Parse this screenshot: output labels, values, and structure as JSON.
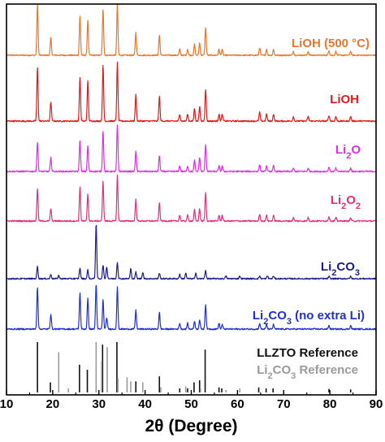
{
  "chart_data": {
    "type": "line",
    "title": "",
    "xlabel": "2θ (Degree)",
    "ylabel": "",
    "xlim": [
      10,
      90
    ],
    "xticks": [
      "10",
      "20",
      "30",
      "40",
      "50",
      "60",
      "70",
      "80",
      "90"
    ],
    "grid": false,
    "series": [
      {
        "name": "LiOH (500 °C)",
        "color": "#E8762B",
        "peaks": [
          [
            16.7,
            1.0
          ],
          [
            19.6,
            0.35
          ],
          [
            25.9,
            0.78
          ],
          [
            27.6,
            0.7
          ],
          [
            30.9,
            0.92
          ],
          [
            34.0,
            1.0
          ],
          [
            38.0,
            0.45
          ],
          [
            43.1,
            0.4
          ],
          [
            47.5,
            0.12
          ],
          [
            49.2,
            0.12
          ],
          [
            50.7,
            0.22
          ],
          [
            51.8,
            0.25
          ],
          [
            53.1,
            0.55
          ],
          [
            56.0,
            0.12
          ],
          [
            56.7,
            0.12
          ],
          [
            64.8,
            0.15
          ],
          [
            66.3,
            0.12
          ],
          [
            67.8,
            0.12
          ],
          [
            72.1,
            0.08
          ],
          [
            75.3,
            0.08
          ],
          [
            79.8,
            0.1
          ],
          [
            81.3,
            0.08
          ],
          [
            84.5,
            0.08
          ]
        ]
      },
      {
        "name": "LiOH",
        "color": "#E01B1B",
        "peaks": [
          [
            16.7,
            0.92
          ],
          [
            19.6,
            0.33
          ],
          [
            25.9,
            0.75
          ],
          [
            27.6,
            0.68
          ],
          [
            30.9,
            0.95
          ],
          [
            34.0,
            1.0
          ],
          [
            38.0,
            0.45
          ],
          [
            43.1,
            0.42
          ],
          [
            47.5,
            0.12
          ],
          [
            49.2,
            0.12
          ],
          [
            50.7,
            0.22
          ],
          [
            51.8,
            0.25
          ],
          [
            53.1,
            0.55
          ],
          [
            56.0,
            0.12
          ],
          [
            56.7,
            0.12
          ],
          [
            64.8,
            0.15
          ],
          [
            66.3,
            0.12
          ],
          [
            67.8,
            0.12
          ],
          [
            72.1,
            0.08
          ],
          [
            75.3,
            0.08
          ],
          [
            79.8,
            0.1
          ],
          [
            81.3,
            0.08
          ],
          [
            84.5,
            0.08
          ]
        ]
      },
      {
        "name": "Li2O",
        "name_base": "Li",
        "name_sub": "2",
        "name_rest": "O",
        "color": "#E22BE6",
        "peaks": [
          [
            16.7,
            0.52
          ],
          [
            19.6,
            0.24
          ],
          [
            25.9,
            0.55
          ],
          [
            27.6,
            0.45
          ],
          [
            30.9,
            0.72
          ],
          [
            34.0,
            0.82
          ],
          [
            38.0,
            0.36
          ],
          [
            43.1,
            0.28
          ],
          [
            47.5,
            0.1
          ],
          [
            49.2,
            0.1
          ],
          [
            50.7,
            0.2
          ],
          [
            51.8,
            0.25
          ],
          [
            53.1,
            0.48
          ],
          [
            56.0,
            0.1
          ],
          [
            56.7,
            0.1
          ],
          [
            64.8,
            0.12
          ],
          [
            66.3,
            0.1
          ],
          [
            67.8,
            0.1
          ],
          [
            72.1,
            0.06
          ],
          [
            75.3,
            0.06
          ],
          [
            79.8,
            0.08
          ],
          [
            81.3,
            0.06
          ],
          [
            84.5,
            0.06
          ]
        ]
      },
      {
        "name": "Li2O2",
        "name_base": "Li",
        "name_sub": "2",
        "name_rest": "O",
        "name_sub2": "2",
        "color": "#E0307A",
        "peaks": [
          [
            16.7,
            0.58
          ],
          [
            19.6,
            0.22
          ],
          [
            25.9,
            0.6
          ],
          [
            27.6,
            0.48
          ],
          [
            30.9,
            0.7
          ],
          [
            34.0,
            0.8
          ],
          [
            38.0,
            0.38
          ],
          [
            43.1,
            0.32
          ],
          [
            47.5,
            0.1
          ],
          [
            49.2,
            0.1
          ],
          [
            50.7,
            0.2
          ],
          [
            51.8,
            0.22
          ],
          [
            53.1,
            0.5
          ],
          [
            56.0,
            0.1
          ],
          [
            56.7,
            0.1
          ],
          [
            64.8,
            0.12
          ],
          [
            66.3,
            0.1
          ],
          [
            67.8,
            0.1
          ],
          [
            72.1,
            0.06
          ],
          [
            75.3,
            0.06
          ],
          [
            79.8,
            0.08
          ],
          [
            81.3,
            0.06
          ],
          [
            84.5,
            0.06
          ]
        ]
      },
      {
        "name": "Li2CO3",
        "name_base": "Li",
        "name_sub": "2",
        "name_rest": "CO",
        "name_sub2": "3",
        "color": "#1C1C8C",
        "peaks": [
          [
            16.7,
            0.22
          ],
          [
            19.6,
            0.08
          ],
          [
            21.3,
            0.06
          ],
          [
            25.9,
            0.2
          ],
          [
            27.6,
            0.16
          ],
          [
            29.4,
            1.0
          ],
          [
            30.9,
            0.25
          ],
          [
            31.7,
            0.22
          ],
          [
            34.0,
            0.3
          ],
          [
            36.9,
            0.18
          ],
          [
            38.0,
            0.12
          ],
          [
            39.5,
            0.12
          ],
          [
            43.1,
            0.1
          ],
          [
            47.5,
            0.08
          ],
          [
            48.8,
            0.1
          ],
          [
            51.0,
            0.1
          ],
          [
            53.1,
            0.15
          ],
          [
            57.5,
            0.05
          ],
          [
            60.5,
            0.05
          ],
          [
            64.8,
            0.05
          ],
          [
            66.5,
            0.05
          ],
          [
            67.8,
            0.05
          ],
          [
            79.8,
            0.04
          ],
          [
            84.5,
            0.04
          ]
        ]
      },
      {
        "name": "Li2CO3 (no extra Li)",
        "name_base": "Li",
        "name_sub": "2",
        "name_rest": "CO",
        "name_sub2": "3",
        "name_tail": " (no extra Li)",
        "color": "#1F2FD6",
        "peaks": [
          [
            16.7,
            0.72
          ],
          [
            19.6,
            0.26
          ],
          [
            25.9,
            0.62
          ],
          [
            27.6,
            0.52
          ],
          [
            29.4,
            0.78
          ],
          [
            30.9,
            0.5
          ],
          [
            31.7,
            0.2
          ],
          [
            34.0,
            0.72
          ],
          [
            38.0,
            0.32
          ],
          [
            43.1,
            0.28
          ],
          [
            47.5,
            0.1
          ],
          [
            49.2,
            0.1
          ],
          [
            50.7,
            0.14
          ],
          [
            51.8,
            0.16
          ],
          [
            53.1,
            0.42
          ],
          [
            56.0,
            0.1
          ],
          [
            56.7,
            0.08
          ],
          [
            64.8,
            0.1
          ],
          [
            66.3,
            0.08
          ],
          [
            67.8,
            0.08
          ],
          [
            79.8,
            0.06
          ],
          [
            84.5,
            0.06
          ]
        ]
      }
    ],
    "references": [
      {
        "name": "LLZTO Reference",
        "color": "#111111",
        "lines": [
          [
            16.7,
            1.0
          ],
          [
            19.5,
            0.2
          ],
          [
            25.8,
            0.55
          ],
          [
            27.5,
            0.45
          ],
          [
            30.8,
            0.95
          ],
          [
            33.9,
            1.0
          ],
          [
            38.0,
            0.22
          ],
          [
            43.1,
            0.32
          ],
          [
            47.5,
            0.08
          ],
          [
            49.2,
            0.08
          ],
          [
            50.6,
            0.2
          ],
          [
            51.8,
            0.24
          ],
          [
            53.0,
            0.85
          ],
          [
            56.0,
            0.1
          ],
          [
            56.6,
            0.08
          ],
          [
            64.6,
            0.1
          ],
          [
            66.2,
            0.08
          ],
          [
            67.7,
            0.08
          ],
          [
            79.8,
            0.07
          ],
          [
            84.5,
            0.06
          ]
        ]
      },
      {
        "name": "Li2CO3 Reference",
        "name_base": "Li",
        "name_sub": "2",
        "name_rest": "CO",
        "name_sub2": "3",
        "name_tail": " Reference",
        "color": "#9A9A9A",
        "lines": [
          [
            21.3,
            0.8
          ],
          [
            23.4,
            0.08
          ],
          [
            29.4,
            1.0
          ],
          [
            30.6,
            0.62
          ],
          [
            31.8,
            0.9
          ],
          [
            34.1,
            0.28
          ],
          [
            36.1,
            0.3
          ],
          [
            36.9,
            0.22
          ],
          [
            39.5,
            0.2
          ],
          [
            43.4,
            0.1
          ],
          [
            48.8,
            0.12
          ],
          [
            52.0,
            0.08
          ],
          [
            57.5,
            0.05
          ],
          [
            60.5,
            0.08
          ]
        ]
      }
    ]
  }
}
